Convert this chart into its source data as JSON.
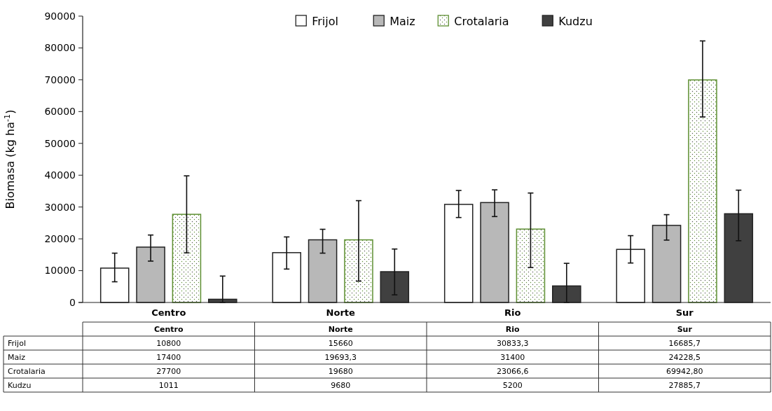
{
  "chart_data": {
    "type": "bar",
    "ylabel": "Biomasa (kg ha$^{-1}$)",
    "categories": [
      "Centro",
      "Norte",
      "Rio",
      "Sur"
    ],
    "series": [
      {
        "name": "Frijol",
        "color": "#ffffff",
        "values": [
          10800,
          15660,
          30833.3,
          16685.7
        ],
        "value_labels": [
          "10800",
          "15660",
          "30833,3",
          "16685,7"
        ],
        "errors": [
          [
            6500,
            15500
          ],
          [
            10500,
            20600
          ],
          [
            26700,
            35200
          ],
          [
            12400,
            21000
          ]
        ]
      },
      {
        "name": "Maiz",
        "color": "#b8b8b8",
        "values": [
          17400,
          19693.3,
          31400,
          24228.5
        ],
        "value_labels": [
          "17400",
          "19693,3",
          "31400",
          "24228,5"
        ],
        "errors": [
          [
            13000,
            21200
          ],
          [
            15500,
            23000
          ],
          [
            27000,
            35400
          ],
          [
            19600,
            27600
          ]
        ]
      },
      {
        "name": "Crotalaria",
        "color": "#5e8f32",
        "values": [
          27700,
          19680,
          23066.6,
          69942.8
        ],
        "value_labels": [
          "27700",
          "19680",
          "23066,6",
          "69942,80"
        ],
        "errors": [
          [
            15600,
            39800
          ],
          [
            6700,
            32000
          ],
          [
            11000,
            34400
          ],
          [
            58300,
            82200
          ]
        ]
      },
      {
        "name": "Kudzu",
        "color": "#404040",
        "values": [
          1011,
          9680,
          5200,
          27885.7
        ],
        "value_labels": [
          "1011",
          "9680",
          "5200",
          "27885,7"
        ],
        "errors": [
          [
            0,
            8300
          ],
          [
            2400,
            16800
          ],
          [
            0,
            12300
          ],
          [
            19400,
            35300
          ]
        ]
      }
    ],
    "ylim": [
      0,
      90000
    ],
    "yticks": [
      0,
      10000,
      20000,
      30000,
      40000,
      50000,
      60000,
      70000,
      80000,
      90000
    ],
    "grid": false,
    "legend": "top"
  }
}
